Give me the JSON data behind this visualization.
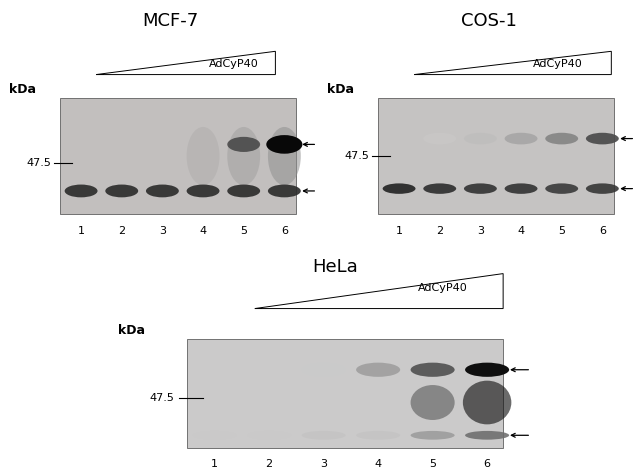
{
  "title_mcf7": "MCF-7",
  "title_cos1": "COS-1",
  "title_hela": "HeLa",
  "adcyp40_label": "AdCyP40",
  "kda_label": "kDa",
  "marker_label": "47.5",
  "font_size_title": 13,
  "font_size_kda": 9,
  "font_size_marker": 8,
  "font_size_lane": 8,
  "font_size_adcyp40": 8,
  "gel_bg_mcf7": "#c2bfbe",
  "gel_bg_cos1": "#c5c3c2",
  "gel_bg_hela": "#cbcaca",
  "white": "#ffffff",
  "black": "#000000",
  "edge_color": "#606060"
}
